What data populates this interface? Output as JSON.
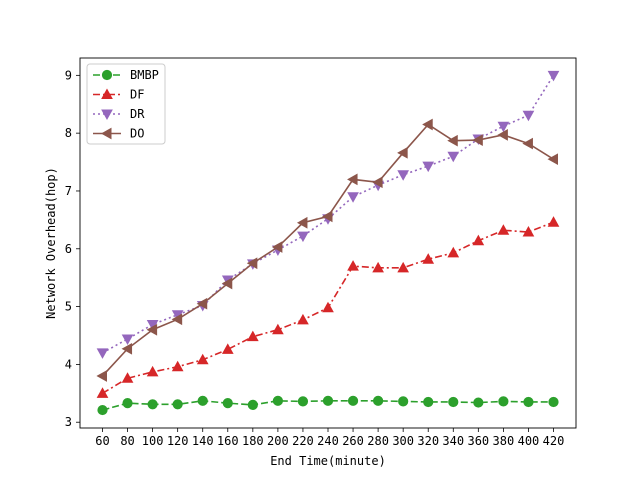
{
  "chart_data": {
    "type": "line",
    "xlabel": "End Time(minute)",
    "ylabel": "Network Overhead(hop)",
    "x": [
      60,
      80,
      100,
      120,
      140,
      160,
      180,
      200,
      220,
      240,
      260,
      280,
      300,
      320,
      340,
      360,
      380,
      400,
      420
    ],
    "ylim": [
      2.9,
      9.3
    ],
    "yticks": [
      3,
      4,
      5,
      6,
      7,
      8,
      9
    ],
    "grid": false,
    "legend_position": "upper-left",
    "series": [
      {
        "name": "BMBP",
        "color": "#2ca02c",
        "marker": "circle",
        "linestyle": "dashed",
        "values": [
          3.21,
          3.33,
          3.31,
          3.31,
          3.37,
          3.33,
          3.3,
          3.37,
          3.36,
          3.37,
          3.37,
          3.37,
          3.36,
          3.35,
          3.35,
          3.34,
          3.36,
          3.35,
          3.35
        ]
      },
      {
        "name": "DF",
        "color": "#d62728",
        "marker": "triangle-up",
        "linestyle": "dashdot",
        "values": [
          3.5,
          3.76,
          3.87,
          3.96,
          4.08,
          4.26,
          4.48,
          4.6,
          4.77,
          4.98,
          5.7,
          5.67,
          5.67,
          5.82,
          5.93,
          6.14,
          6.32,
          6.29,
          6.46
        ]
      },
      {
        "name": "DR",
        "color": "#9467bd",
        "marker": "triangle-down",
        "linestyle": "dotted",
        "values": [
          4.2,
          4.44,
          4.69,
          4.86,
          5.02,
          5.46,
          5.74,
          5.98,
          6.22,
          6.52,
          6.9,
          7.1,
          7.28,
          7.43,
          7.6,
          7.9,
          8.12,
          8.31,
          9.0
        ]
      },
      {
        "name": "DO",
        "color": "#8c564b",
        "marker": "triangle-left",
        "linestyle": "solid",
        "values": [
          3.8,
          4.27,
          4.6,
          4.78,
          5.05,
          5.4,
          5.75,
          6.03,
          6.45,
          6.56,
          7.2,
          7.15,
          7.66,
          8.15,
          7.87,
          7.88,
          7.97,
          7.82,
          7.55
        ]
      }
    ]
  }
}
